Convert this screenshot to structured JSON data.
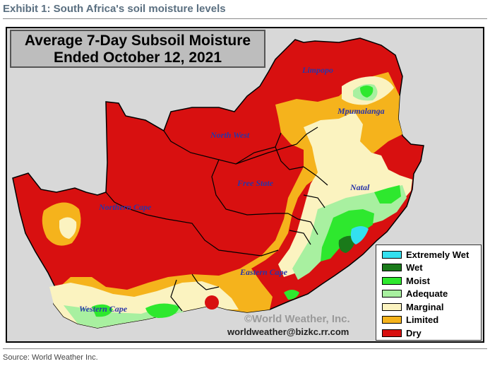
{
  "exhibit_title": "Exhibit 1: South Africa's soil moisture levels",
  "map": {
    "title_line1": "Average 7-Day Subsoil Moisture",
    "title_line2": "Ended October 12, 2021",
    "regions": {
      "limpopo": "Limpopo",
      "mpumalanga": "Mpumalanga",
      "north_west": "North West",
      "free_state": "Free State",
      "natal": "Natal",
      "northern_cape": "Northern Cape",
      "eastern_cape": "Eastern Cape",
      "western_cape": "Western Cape"
    },
    "credit": "©World Weather, Inc.",
    "email": "worldweather@bizkc.rr.com"
  },
  "legend": [
    {
      "label": "Extremely Wet",
      "color": "#33e0f0"
    },
    {
      "label": "Wet",
      "color": "#1a7a1a"
    },
    {
      "label": "Moist",
      "color": "#2ee82e"
    },
    {
      "label": "Adequate",
      "color": "#a8f0a0"
    },
    {
      "label": "Marginal",
      "color": "#fbf3c0"
    },
    {
      "label": "Limited",
      "color": "#f5b31c"
    },
    {
      "label": "Dry",
      "color": "#d81010"
    }
  ],
  "source": "Source: World Weather Inc."
}
